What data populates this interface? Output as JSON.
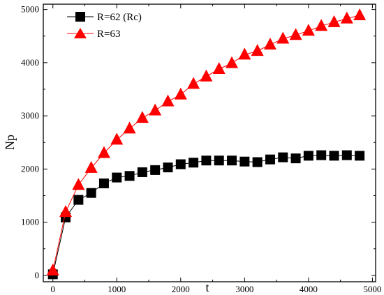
{
  "chart_data": {
    "type": "line",
    "xlabel": "t",
    "ylabel": "Np",
    "xlim": [
      -150,
      5050
    ],
    "ylim": [
      -120,
      5100
    ],
    "xticks": [
      0,
      1000,
      2000,
      3000,
      4000,
      5000
    ],
    "yticks": [
      0,
      1000,
      2000,
      3000,
      4000,
      5000
    ],
    "xminor": [
      500,
      1500,
      2500,
      3500,
      4500
    ],
    "yminor": [
      500,
      1500,
      2500,
      3500,
      4500
    ],
    "legend_position": "top-left",
    "series": [
      {
        "name": "R=62 (Rc)",
        "marker": "square",
        "color": "#000000",
        "x": [
          0,
          200,
          400,
          600,
          800,
          1000,
          1200,
          1400,
          1600,
          1800,
          2000,
          2200,
          2400,
          2600,
          2800,
          3000,
          3200,
          3400,
          3600,
          3800,
          4000,
          4200,
          4400,
          4600,
          4800
        ],
        "y": [
          20,
          1090,
          1420,
          1550,
          1730,
          1840,
          1870,
          1940,
          1980,
          2030,
          2090,
          2120,
          2160,
          2160,
          2160,
          2140,
          2130,
          2180,
          2220,
          2200,
          2250,
          2260,
          2250,
          2260,
          2250
        ]
      },
      {
        "name": "R=63",
        "marker": "triangle",
        "color": "#ff0000",
        "x": [
          0,
          200,
          400,
          600,
          800,
          1000,
          1200,
          1400,
          1600,
          1800,
          2000,
          2200,
          2400,
          2600,
          2800,
          3000,
          3200,
          3400,
          3600,
          3800,
          4000,
          4200,
          4400,
          4600,
          4800
        ],
        "y": [
          90,
          1190,
          1700,
          2020,
          2300,
          2550,
          2760,
          2960,
          3100,
          3270,
          3400,
          3600,
          3740,
          3880,
          3990,
          4150,
          4220,
          4340,
          4450,
          4520,
          4600,
          4690,
          4760,
          4830,
          4890
        ]
      }
    ]
  }
}
